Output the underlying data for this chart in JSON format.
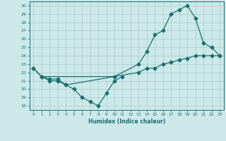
{
  "title": "",
  "xlabel": "Humidex (Indice chaleur)",
  "bg_color": "#cce8e8",
  "line_color": "#1a7070",
  "grid_color": "#aacccc",
  "xlim": [
    -0.5,
    23.5
  ],
  "ylim": [
    17.5,
    30.5
  ],
  "xticks": [
    0,
    1,
    2,
    3,
    4,
    5,
    6,
    7,
    8,
    9,
    10,
    11,
    12,
    13,
    14,
    15,
    16,
    17,
    18,
    19,
    20,
    21,
    22,
    23
  ],
  "yticks": [
    18,
    19,
    20,
    21,
    22,
    23,
    24,
    25,
    26,
    27,
    28,
    29,
    30
  ],
  "line1_x": [
    0,
    1,
    2,
    3,
    4,
    10,
    13,
    14,
    15,
    16,
    17,
    18,
    19,
    20,
    21,
    22,
    23
  ],
  "line1_y": [
    22.5,
    21.5,
    21.2,
    21.2,
    20.5,
    21.5,
    23.0,
    24.5,
    26.5,
    27.0,
    29.0,
    29.5,
    30.0,
    28.5,
    25.5,
    25.0,
    24.0
  ],
  "line2_x": [
    0,
    1,
    10,
    13,
    14,
    15,
    16,
    17,
    18,
    19,
    20,
    21,
    22,
    23
  ],
  "line2_y": [
    22.5,
    21.5,
    21.5,
    22.0,
    22.5,
    22.5,
    23.0,
    23.2,
    23.5,
    23.7,
    24.0,
    24.0,
    24.0,
    24.0
  ],
  "line3_x": [
    1,
    2,
    3,
    4,
    5,
    6,
    7,
    8,
    9,
    10,
    11
  ],
  "line3_y": [
    21.5,
    21.0,
    21.0,
    20.5,
    20.0,
    19.0,
    18.5,
    18.0,
    19.5,
    21.0,
    21.5
  ],
  "markersize": 2.5,
  "linewidth": 0.9
}
